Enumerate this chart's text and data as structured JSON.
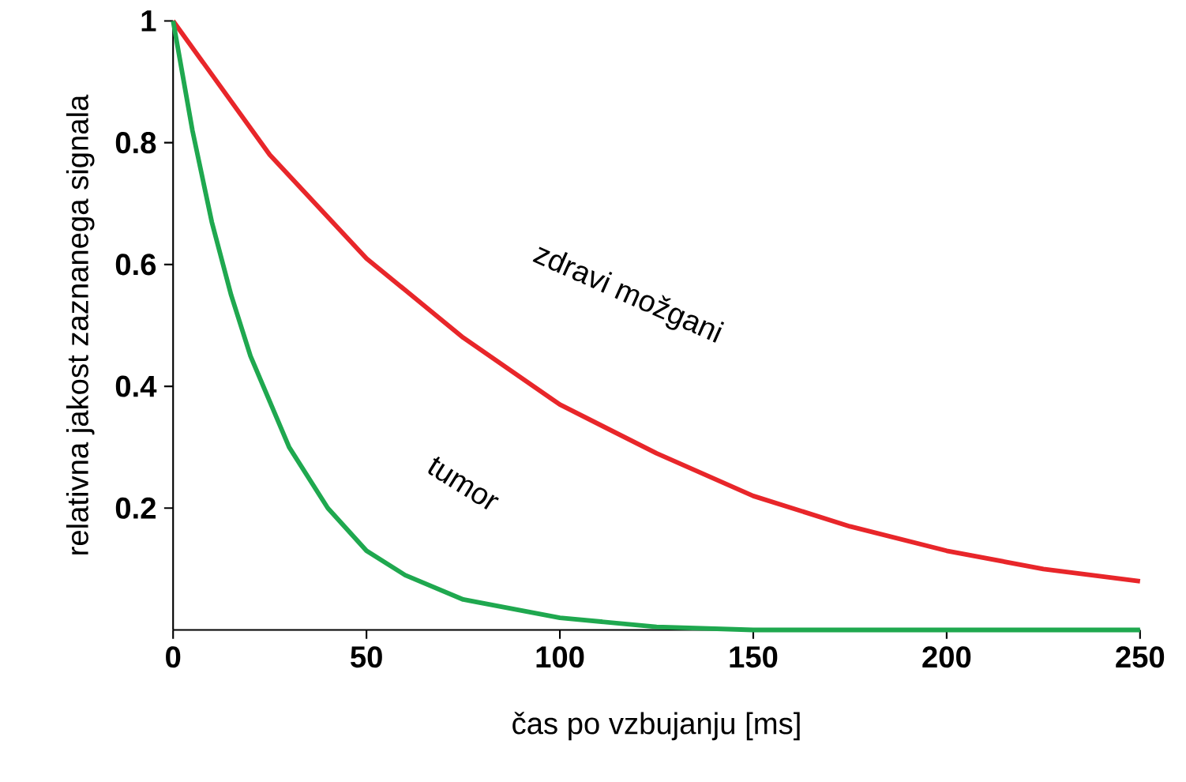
{
  "chart_data": {
    "type": "line",
    "xlabel": "čas po vzbujanju [ms]",
    "ylabel": "relativna jakost zaznanega signala",
    "xlim": [
      0,
      250
    ],
    "ylim": [
      0,
      1
    ],
    "xticks": [
      0,
      50,
      100,
      150,
      200,
      250
    ],
    "yticks": [
      0.2,
      0.4,
      0.6,
      0.8,
      1
    ],
    "grid": false,
    "marker": "none",
    "line_style": "solid",
    "series": [
      {
        "color": "#e8262a",
        "x": [
          0,
          25,
          50,
          75,
          100,
          125,
          150,
          175,
          200,
          225,
          250
        ],
        "values": [
          1,
          0.78,
          0.61,
          0.48,
          0.37,
          0.29,
          0.22,
          0.17,
          0.13,
          0.1,
          0.08
        ]
      },
      {
        "color": "#1fa84f",
        "x": [
          0,
          5,
          10,
          15,
          20,
          30,
          40,
          50,
          60,
          75,
          100,
          125,
          150,
          175,
          200,
          250
        ],
        "values": [
          1,
          0.82,
          0.67,
          0.55,
          0.45,
          0.3,
          0.2,
          0.13,
          0.09,
          0.05,
          0.02,
          0.005,
          0,
          0,
          0,
          0
        ]
      }
    ],
    "annotations": [
      "zdravi možgani",
      "tumor"
    ]
  }
}
